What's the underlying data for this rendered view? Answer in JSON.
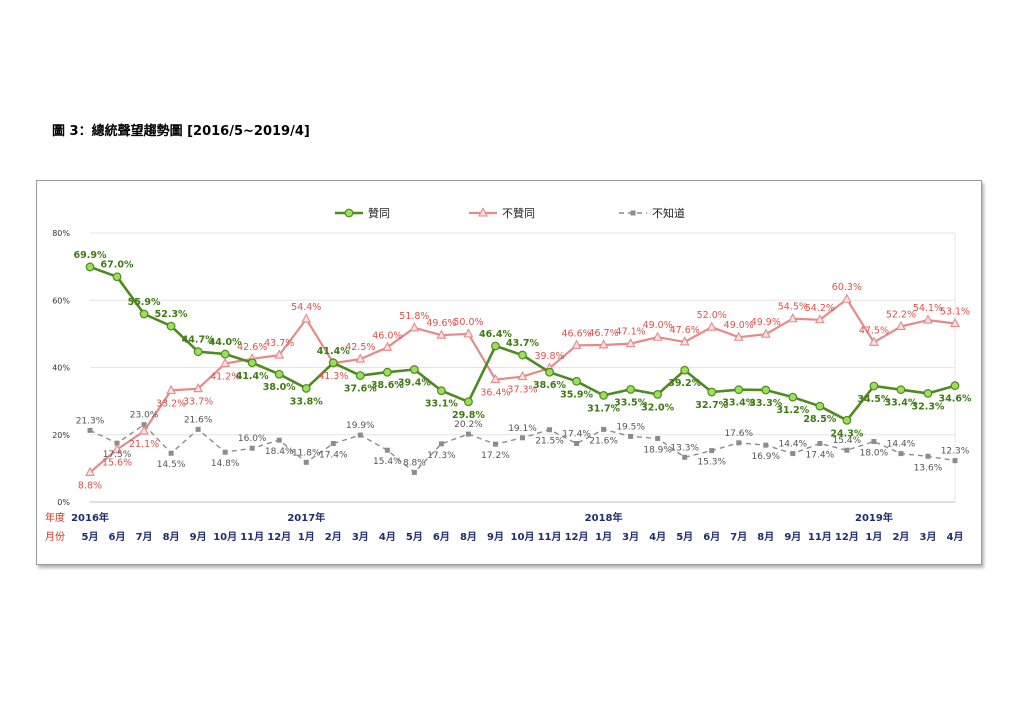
{
  "title": "圖 3：總統聲望趨勢圖 [2016/5~2019/4]",
  "colors": {
    "approve": "#4d8a1f",
    "approve_marker": "#9be05a",
    "disapprove": "#e58a8a",
    "disapprove_label": "#d9534f",
    "unknown": "#8c8c8c",
    "approve_label": "#3e7a12"
  },
  "row_labels": {
    "year": "年度",
    "month": "月份"
  },
  "chart_data": {
    "type": "line",
    "ylim": [
      0,
      80
    ],
    "y_ticks": [
      "0%",
      "20%",
      "40%",
      "60%",
      "80%"
    ],
    "y_tick_values": [
      0,
      20,
      40,
      60,
      80
    ],
    "grid": true,
    "legend_position": "top-center",
    "categories": [
      "5月",
      "6月",
      "7月",
      "8月",
      "9月",
      "10月",
      "11月",
      "12月",
      "1月",
      "2月",
      "3月",
      "4月",
      "5月",
      "6月",
      "8月",
      "9月",
      "10月",
      "11月",
      "12月",
      "1月",
      "3月",
      "4月",
      "5月",
      "6月",
      "7月",
      "8月",
      "9月",
      "11月",
      "12月",
      "1月",
      "2月",
      "3月",
      "4月"
    ],
    "year_labels": [
      {
        "index": 0,
        "label": "2016年"
      },
      {
        "index": 8,
        "label": "2017年"
      },
      {
        "index": 19,
        "label": "2018年"
      },
      {
        "index": 29,
        "label": "2019年"
      }
    ],
    "series": [
      {
        "name": "贊同",
        "values": [
          69.9,
          67.0,
          55.9,
          52.3,
          44.7,
          44.0,
          41.4,
          38.0,
          33.8,
          41.4,
          37.6,
          38.6,
          39.4,
          33.1,
          29.8,
          46.4,
          43.7,
          38.6,
          35.9,
          31.7,
          33.5,
          32.0,
          39.2,
          32.7,
          33.4,
          33.3,
          31.2,
          28.5,
          24.3,
          34.5,
          33.4,
          32.3,
          34.6
        ]
      },
      {
        "name": "不贊同",
        "values": [
          8.8,
          15.6,
          21.1,
          33.2,
          33.7,
          41.2,
          42.6,
          43.7,
          54.4,
          41.3,
          42.5,
          46.0,
          51.8,
          49.6,
          50.0,
          36.4,
          37.3,
          39.8,
          46.6,
          46.7,
          47.1,
          49.0,
          47.6,
          52.0,
          49.0,
          49.9,
          54.5,
          54.2,
          60.3,
          47.5,
          52.2,
          54.1,
          53.1
        ]
      },
      {
        "name": "不知道",
        "values": [
          21.3,
          17.5,
          23.0,
          14.5,
          21.6,
          14.8,
          16.0,
          18.4,
          11.8,
          17.4,
          19.9,
          15.4,
          8.8,
          17.3,
          20.2,
          17.2,
          19.1,
          21.5,
          17.4,
          21.6,
          19.5,
          18.9,
          13.3,
          15.3,
          17.6,
          16.9,
          14.4,
          17.4,
          15.4,
          18.0,
          14.4,
          13.6,
          12.3
        ]
      }
    ],
    "data_labels": {
      "approve": [
        "69.9%",
        "67.0%",
        "55.9%",
        "52.3%",
        "44.7%",
        "44.0%",
        "41.4%",
        "38.0%",
        "33.8%",
        "41.4%",
        "37.6%",
        "38.6%",
        "39.4%",
        "33.1%",
        "29.8%",
        "46.4%",
        "43.7%",
        "38.6%",
        "35.9%",
        "31.7%",
        "33.5%",
        "32.0%",
        "39.2%",
        "32.7%",
        "33.4%",
        "33.3%",
        "31.2%",
        "28.5%",
        "24.3%",
        "34.5%",
        "33.4%",
        "32.3%",
        "34.6%"
      ],
      "disapprove": [
        "8.8%",
        "15.6%",
        "21.1%",
        "33.2%",
        "33.7%",
        "41.2%",
        "42.6%",
        "43.7%",
        "54.4%",
        "41.3%",
        "42.5%",
        "46.0%",
        "51.8%",
        "49.6%",
        "50.0%",
        "36.4%",
        "37.3%",
        "39.8%",
        "46.6%",
        "46.7%",
        "47.1%",
        "49.0%",
        "47.6%",
        "52.0%",
        "49.0%",
        "49.9%",
        "54.5%",
        "54.2%",
        "60.3%",
        "47.5%",
        "52.2%",
        "54.1%",
        "53.1%"
      ],
      "unknown": [
        "21.3%",
        "17.5%",
        "23.0%",
        "14.5%",
        "21.6%",
        "14.8%",
        "16.0%",
        "18.4%",
        "11.8%",
        "17.4%",
        "19.9%",
        "15.4%",
        "8.8%",
        "17.3%",
        "20.2%",
        "17.2%",
        "19.1%",
        "21.5%",
        "17.4%",
        "21.6%",
        "19.5%",
        "18.9%",
        "13.3%",
        "15.3%",
        "17.6%",
        "16.9%",
        "14.4%",
        "17.4%",
        "15.4%",
        "18.0%",
        "14.4%",
        "13.6%",
        "12.3%"
      ]
    }
  }
}
